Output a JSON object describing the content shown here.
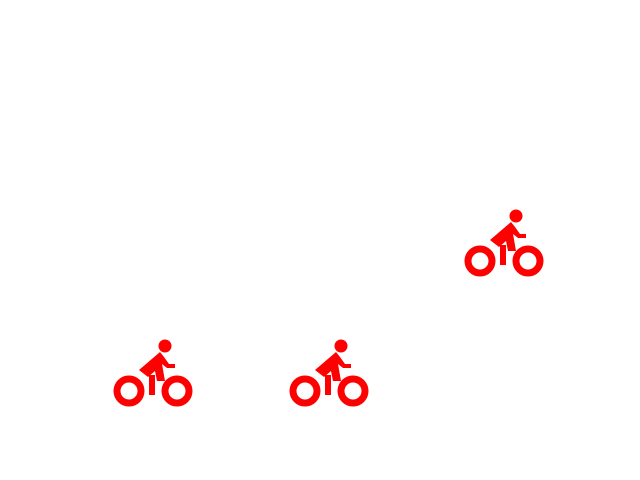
{
  "scene": {
    "background_color": "#ffffff",
    "sprite_color": "#ff0000",
    "sprites": [
      {
        "name": "cyclist-1",
        "icon": "bicycle-rider-icon"
      },
      {
        "name": "cyclist-2",
        "icon": "bicycle-rider-icon"
      },
      {
        "name": "cyclist-3",
        "icon": "bicycle-rider-icon"
      }
    ]
  }
}
